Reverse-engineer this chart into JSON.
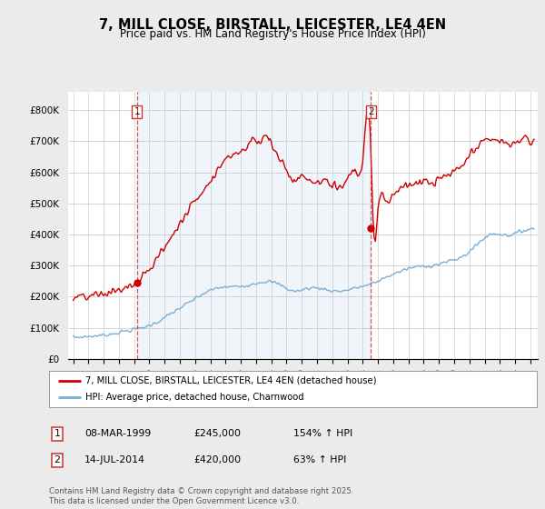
{
  "title": "7, MILL CLOSE, BIRSTALL, LEICESTER, LE4 4EN",
  "subtitle": "Price paid vs. HM Land Registry's House Price Index (HPI)",
  "sale1_date_str": "08-MAR-1999",
  "sale1_price": 245000,
  "sale2_date_str": "14-JUL-2014",
  "sale2_price": 420000,
  "red_line_color": "#cc0000",
  "blue_line_color": "#7bafd4",
  "dashed_vline_color": "#dd3333",
  "shade_color": "#ddeeff",
  "background_color": "#ebebeb",
  "plot_bg_color": "#ffffff",
  "grid_color": "#cccccc",
  "label_box_edge": "#cc3333",
  "ytick_labels": [
    "£0",
    "£100K",
    "£200K",
    "£300K",
    "£400K",
    "£500K",
    "£600K",
    "£700K",
    "£800K"
  ],
  "ytick_values": [
    0,
    100000,
    200000,
    300000,
    400000,
    500000,
    600000,
    700000,
    800000
  ],
  "ylim": [
    0,
    860000
  ],
  "legend_label_red": "7, MILL CLOSE, BIRSTALL, LEICESTER, LE4 4EN (detached house)",
  "legend_label_blue": "HPI: Average price, detached house, Charnwood",
  "footer": "Contains HM Land Registry data © Crown copyright and database right 2025.\nThis data is licensed under the Open Government Licence v3.0.",
  "table_row1": [
    "1",
    "08-MAR-1999",
    "£245,000",
    "154% ↑ HPI"
  ],
  "table_row2": [
    "2",
    "14-JUL-2014",
    "£420,000",
    "63% ↑ HPI"
  ],
  "hpi_keypoints_years": [
    1995.0,
    1996.0,
    1997.5,
    1998.5,
    1999.5,
    2000.5,
    2001.5,
    2002.5,
    2003.5,
    2004.5,
    2005.5,
    2006.5,
    2007.5,
    2008.5,
    2009.5,
    2010.5,
    2011.5,
    2012.5,
    2013.5,
    2014.5,
    2015.5,
    2016.5,
    2017.5,
    2018.5,
    2019.5,
    2020.5,
    2021.5,
    2022.5,
    2023.5,
    2024.5,
    2025.25
  ],
  "hpi_keypoints_vals": [
    68000,
    72000,
    80000,
    90000,
    100000,
    118000,
    148000,
    178000,
    208000,
    228000,
    232000,
    238000,
    248000,
    240000,
    218000,
    228000,
    224000,
    218000,
    228000,
    240000,
    262000,
    282000,
    296000,
    300000,
    312000,
    328000,
    368000,
    402000,
    398000,
    412000,
    418000
  ],
  "red_keypoints_years": [
    1995.0,
    1996.0,
    1997.5,
    1998.2,
    1999.18,
    2000.0,
    2001.0,
    2002.0,
    2003.0,
    2004.0,
    2004.5,
    2005.0,
    2005.5,
    2006.0,
    2006.5,
    2007.0,
    2007.3,
    2007.6,
    2008.0,
    2008.5,
    2009.0,
    2009.5,
    2010.0,
    2010.5,
    2011.0,
    2011.5,
    2012.0,
    2012.5,
    2013.0,
    2013.5,
    2014.0,
    2014.54,
    2014.7,
    2015.0,
    2015.5,
    2016.0,
    2016.5,
    2017.0,
    2017.5,
    2018.0,
    2018.5,
    2019.0,
    2019.5,
    2020.0,
    2020.5,
    2021.0,
    2021.5,
    2022.0,
    2022.5,
    2023.0,
    2023.5,
    2024.0,
    2024.5,
    2025.0,
    2025.25
  ],
  "red_keypoints_vals": [
    195000,
    200000,
    215000,
    225000,
    245000,
    290000,
    360000,
    435000,
    510000,
    575000,
    610000,
    640000,
    660000,
    670000,
    690000,
    710000,
    695000,
    720000,
    690000,
    650000,
    610000,
    570000,
    590000,
    575000,
    565000,
    575000,
    555000,
    560000,
    580000,
    610000,
    640000,
    680000,
    420000,
    480000,
    510000,
    530000,
    545000,
    560000,
    565000,
    570000,
    565000,
    575000,
    590000,
    600000,
    620000,
    650000,
    680000,
    700000,
    710000,
    700000,
    690000,
    695000,
    710000,
    700000,
    695000
  ]
}
